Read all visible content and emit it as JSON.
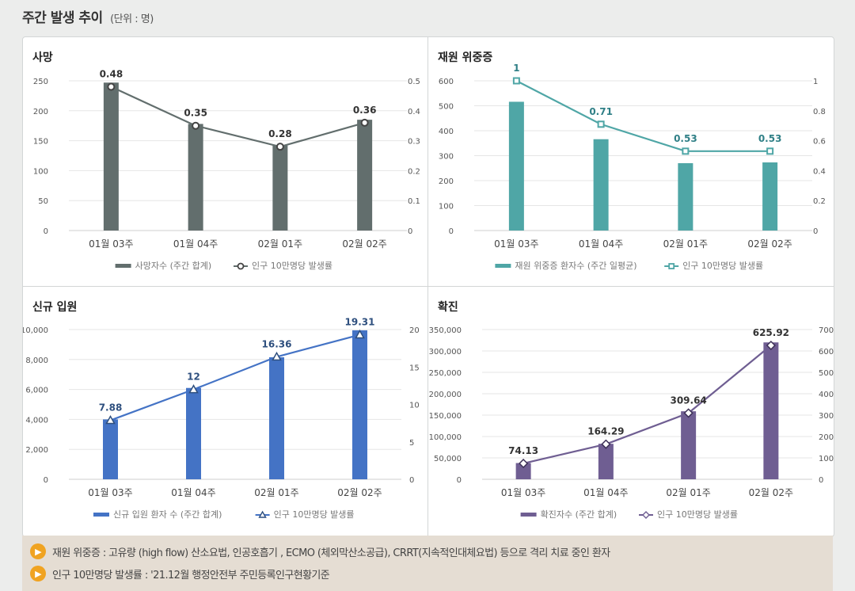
{
  "page": {
    "title": "주간 발생 추이",
    "unit": "(단위 : 명)"
  },
  "colors": {
    "death": "#626e6d",
    "severe": "#4fa6a6",
    "admission": "#4473c5",
    "confirmed": "#6f5e92"
  },
  "chart_data": [
    {
      "id": "death",
      "type": "bar",
      "title": "사망",
      "categories": [
        "01월 03주",
        "01월 04주",
        "02월 01주",
        "02월 02주"
      ],
      "series": [
        {
          "name": "사망자수 (주간 합계)",
          "kind": "bar",
          "axis": "left",
          "values": [
            247,
            178,
            142,
            185
          ]
        },
        {
          "name": "인구 10만명당 발생률",
          "kind": "line",
          "axis": "right",
          "marker": "circle",
          "values": [
            0.48,
            0.35,
            0.28,
            0.36
          ],
          "labels": [
            "0.48",
            "0.35",
            "0.28",
            "0.36"
          ]
        }
      ],
      "y_left": {
        "min": 0,
        "max": 250,
        "ticks": [
          "0",
          "50",
          "100",
          "150",
          "200",
          "250"
        ],
        "tick_values": [
          0,
          50,
          100,
          150,
          200,
          250
        ]
      },
      "y_right": {
        "min": 0,
        "max": 0.5,
        "ticks": [
          "0",
          "0.1",
          "0.2",
          "0.3",
          "0.4",
          "0.5"
        ],
        "tick_values": [
          0,
          0.1,
          0.2,
          0.3,
          0.4,
          0.5
        ]
      },
      "legend": [
        "사망자수 (주간 합계)",
        "인구 10만명당 발생률"
      ]
    },
    {
      "id": "severe",
      "type": "bar",
      "title": "재원 위중증",
      "categories": [
        "01월 03주",
        "01월 04주",
        "02월 01주",
        "02월 02주"
      ],
      "series": [
        {
          "name": "재원 위중증 환자수 (주간 일평균)",
          "kind": "bar",
          "axis": "left",
          "values": [
            516,
            366,
            270,
            273
          ]
        },
        {
          "name": "인구 10만명당 발생률",
          "kind": "line",
          "axis": "right",
          "marker": "square",
          "values": [
            1,
            0.71,
            0.53,
            0.53
          ],
          "labels": [
            "1",
            "0.71",
            "0.53",
            "0.53"
          ]
        }
      ],
      "y_left": {
        "min": 0,
        "max": 600,
        "ticks": [
          "0",
          "100",
          "200",
          "300",
          "400",
          "500",
          "600"
        ],
        "tick_values": [
          0,
          100,
          200,
          300,
          400,
          500,
          600
        ]
      },
      "y_right": {
        "min": 0,
        "max": 1,
        "ticks": [
          "0",
          "0.2",
          "0.4",
          "0.6",
          "0.8",
          "1"
        ],
        "tick_values": [
          0,
          0.2,
          0.4,
          0.6,
          0.8,
          1
        ]
      },
      "legend": [
        "재원 위중증 환자수 (주간 일평균)",
        "인구 10만명당 발생률"
      ]
    },
    {
      "id": "admission",
      "type": "bar",
      "title": "신규 입원",
      "categories": [
        "01월 03주",
        "01월 04주",
        "02월 01주",
        "02월 02주"
      ],
      "series": [
        {
          "name": "신규 입원 환자 수 (주간 합계)",
          "kind": "bar",
          "axis": "left",
          "values": [
            4000,
            6100,
            8150,
            9950
          ]
        },
        {
          "name": "인구 10만명당 발생률",
          "kind": "line",
          "axis": "right",
          "marker": "triangle",
          "values": [
            7.88,
            12,
            16.36,
            19.31
          ],
          "labels": [
            "7.88",
            "12",
            "16.36",
            "19.31"
          ]
        }
      ],
      "y_left": {
        "min": 0,
        "max": 10000,
        "ticks": [
          "0",
          "2,000",
          "4,000",
          "6,000",
          "8,000",
          "10,000"
        ],
        "tick_values": [
          0,
          2000,
          4000,
          6000,
          8000,
          10000
        ]
      },
      "y_right": {
        "min": 0,
        "max": 20,
        "ticks": [
          "0",
          "5",
          "10",
          "15",
          "20"
        ],
        "tick_values": [
          0,
          5,
          10,
          15,
          20
        ]
      },
      "legend": [
        "신규 입원 환자 수 (주간 합계)",
        "인구 10만명당 발생률"
      ]
    },
    {
      "id": "confirmed",
      "type": "bar",
      "title": "확진",
      "categories": [
        "01월 03주",
        "01월 04주",
        "02월 01주",
        "02월 02주"
      ],
      "series": [
        {
          "name": "확진자수 (주간 합계)",
          "kind": "bar",
          "axis": "left",
          "values": [
            38000,
            83000,
            159000,
            320000
          ]
        },
        {
          "name": "인구 10만명당 발생률",
          "kind": "line",
          "axis": "right",
          "marker": "diamond",
          "values": [
            74.13,
            164.29,
            309.64,
            625.92
          ],
          "labels": [
            "74.13",
            "164.29",
            "309.64",
            "625.92"
          ]
        }
      ],
      "y_left": {
        "min": 0,
        "max": 350000,
        "ticks": [
          "0",
          "50,000",
          "100,000",
          "150,000",
          "200,000",
          "250,000",
          "300,000",
          "350,000"
        ],
        "tick_values": [
          0,
          50000,
          100000,
          150000,
          200000,
          250000,
          300000,
          350000
        ]
      },
      "y_right": {
        "min": 0,
        "max": 700,
        "ticks": [
          "0",
          "100",
          "200",
          "300",
          "400",
          "500",
          "600",
          "700"
        ],
        "tick_values": [
          0,
          100,
          200,
          300,
          400,
          500,
          600,
          700
        ]
      },
      "legend": [
        "확진자수 (주간 합계)",
        "인구 10만명당 발생률"
      ]
    }
  ],
  "notes": [
    "재원 위중증 : 고유량 (high flow) 산소요법, 인공호흡기 , ECMO (체외막산소공급), CRRT(지속적인대체요법) 등으로 격리 치료 중인 환자",
    "인구 10만명당 발생률 : '21.12월 행정안전부 주민등록인구현황기준"
  ],
  "note_icon": "speaker-icon"
}
